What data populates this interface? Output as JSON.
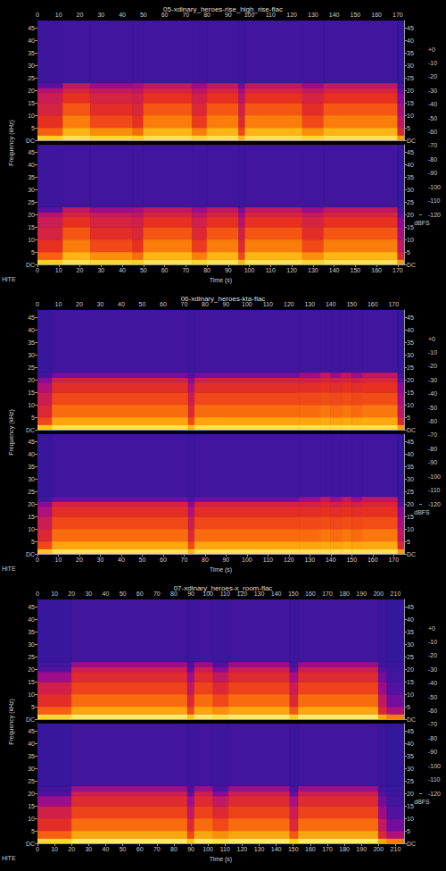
{
  "chart_data": [
    {
      "type": "heatmap",
      "title": "05-xdinary_heroes-rise_high_rise-flac",
      "x_label": "Time (s)",
      "y_label": "Frequency (kHz)",
      "footer": "HiTE",
      "xlim": [
        0,
        173
      ],
      "xticks": [
        0,
        10,
        20,
        30,
        40,
        50,
        60,
        70,
        80,
        90,
        100,
        110,
        120,
        130,
        140,
        150,
        160,
        170
      ],
      "ylim": [
        0,
        48
      ],
      "yticks": [
        {
          "value": 0,
          "label": "DC"
        },
        5,
        10,
        15,
        20,
        25,
        30,
        35,
        40,
        45
      ],
      "time_bins": [
        0,
        12,
        25,
        45,
        50,
        73,
        80,
        95,
        98,
        125,
        135,
        170,
        173
      ],
      "freq_bins": [
        0,
        2,
        5,
        10,
        15,
        19,
        21,
        23,
        48
      ],
      "channels": [
        {
          "cells": [
            [
              -20,
              -40,
              -50,
              -58,
              -62,
              -68,
              -90,
              -96
            ],
            [
              -15,
              -25,
              -35,
              -42,
              -50,
              -58,
              -65,
              -95
            ],
            [
              -18,
              -32,
              -45,
              -52,
              -58,
              -64,
              -75,
              -95
            ],
            [
              -20,
              -38,
              -50,
              -56,
              -60,
              -66,
              -72,
              -95
            ],
            [
              -15,
              -25,
              -35,
              -42,
              -50,
              -58,
              -65,
              -95
            ],
            [
              -18,
              -35,
              -48,
              -55,
              -60,
              -66,
              -75,
              -95
            ],
            [
              -15,
              -25,
              -35,
              -42,
              -50,
              -58,
              -65,
              -95
            ],
            [
              -25,
              -45,
              -55,
              -60,
              -68,
              -75,
              -85,
              -96
            ],
            [
              -15,
              -25,
              -35,
              -42,
              -50,
              -58,
              -65,
              -95
            ],
            [
              -18,
              -32,
              -45,
              -52,
              -58,
              -64,
              -75,
              -95
            ],
            [
              -15,
              -25,
              -35,
              -42,
              -50,
              -58,
              -65,
              -95
            ],
            [
              -30,
              -55,
              -65,
              -72,
              -80,
              -90,
              -95,
              -98
            ]
          ]
        },
        {
          "cells": [
            [
              -20,
              -40,
              -50,
              -58,
              -62,
              -68,
              -90,
              -96
            ],
            [
              -15,
              -25,
              -35,
              -42,
              -50,
              -58,
              -65,
              -95
            ],
            [
              -18,
              -32,
              -45,
              -52,
              -58,
              -64,
              -75,
              -95
            ],
            [
              -20,
              -38,
              -50,
              -56,
              -60,
              -66,
              -72,
              -95
            ],
            [
              -15,
              -25,
              -35,
              -42,
              -50,
              -58,
              -65,
              -95
            ],
            [
              -18,
              -35,
              -48,
              -55,
              -60,
              -66,
              -75,
              -95
            ],
            [
              -15,
              -25,
              -35,
              -42,
              -50,
              -58,
              -65,
              -95
            ],
            [
              -25,
              -45,
              -55,
              -60,
              -68,
              -75,
              -85,
              -96
            ],
            [
              -15,
              -25,
              -35,
              -42,
              -50,
              -58,
              -65,
              -95
            ],
            [
              -18,
              -32,
              -45,
              -52,
              -58,
              -64,
              -75,
              -95
            ],
            [
              -15,
              -25,
              -35,
              -42,
              -50,
              -58,
              -65,
              -95
            ],
            [
              -30,
              -55,
              -65,
              -72,
              -80,
              -90,
              -95,
              -98
            ]
          ]
        }
      ],
      "colorbar": {
        "label": "dBFS",
        "range": [
          -120,
          0
        ],
        "ticks": [
          {
            "value": 0,
            "label": "+0"
          },
          -10,
          -20,
          -30,
          -40,
          -50,
          -60,
          -70,
          -80,
          -90,
          -100,
          -110,
          -120
        ],
        "colors": [
          "#000000",
          "#0a0a3a",
          "#2a1a9a",
          "#5a10a0",
          "#8a0a9a",
          "#b0107a",
          "#d0204a",
          "#e83020",
          "#f86010",
          "#fc9a08",
          "#fdd020",
          "#fff080",
          "#ffffff"
        ]
      }
    },
    {
      "type": "heatmap",
      "title": "06-xdinary_heroes-kta-flac",
      "x_label": "Time (s)",
      "y_label": "Frequency (kHz)",
      "footer": "HiTE",
      "xlim": [
        0,
        175
      ],
      "xticks": [
        0,
        10,
        20,
        30,
        40,
        50,
        60,
        70,
        80,
        90,
        100,
        110,
        120,
        130,
        140,
        150,
        160,
        170
      ],
      "ylim": [
        0,
        48
      ],
      "yticks": [
        {
          "value": 0,
          "label": "DC"
        },
        5,
        10,
        15,
        20,
        25,
        30,
        35,
        40,
        45
      ],
      "time_bins": [
        0,
        7,
        72,
        75,
        125,
        135,
        140,
        145,
        150,
        155,
        172,
        175
      ],
      "freq_bins": [
        0,
        2,
        5,
        10,
        15,
        19,
        21,
        23,
        48
      ],
      "channels": [
        {
          "cells": [
            [
              -22,
              -45,
              -55,
              -62,
              -70,
              -80,
              -95,
              -97
            ],
            [
              -15,
              -28,
              -38,
              -45,
              -52,
              -60,
              -85,
              -95
            ],
            [
              -25,
              -45,
              -55,
              -62,
              -70,
              -80,
              -92,
              -96
            ],
            [
              -15,
              -28,
              -38,
              -45,
              -52,
              -60,
              -85,
              -95
            ],
            [
              -15,
              -28,
              -38,
              -45,
              -52,
              -60,
              -75,
              -95
            ],
            [
              -15,
              -27,
              -36,
              -44,
              -50,
              -57,
              -65,
              -95
            ],
            [
              -15,
              -28,
              -38,
              -45,
              -52,
              -60,
              -75,
              -95
            ],
            [
              -15,
              -27,
              -36,
              -44,
              -50,
              -57,
              -65,
              -95
            ],
            [
              -15,
              -28,
              -38,
              -45,
              -52,
              -60,
              -75,
              -95
            ],
            [
              -15,
              -27,
              -36,
              -44,
              -50,
              -57,
              -65,
              -95
            ],
            [
              -30,
              -55,
              -65,
              -72,
              -80,
              -90,
              -95,
              -98
            ]
          ]
        },
        {
          "cells": [
            [
              -22,
              -45,
              -55,
              -62,
              -70,
              -80,
              -95,
              -97
            ],
            [
              -15,
              -28,
              -38,
              -45,
              -52,
              -60,
              -85,
              -95
            ],
            [
              -25,
              -45,
              -55,
              -62,
              -70,
              -80,
              -92,
              -96
            ],
            [
              -15,
              -28,
              -38,
              -45,
              -52,
              -60,
              -85,
              -95
            ],
            [
              -15,
              -28,
              -38,
              -45,
              -52,
              -60,
              -75,
              -95
            ],
            [
              -15,
              -27,
              -36,
              -44,
              -50,
              -57,
              -65,
              -95
            ],
            [
              -15,
              -28,
              -38,
              -45,
              -52,
              -60,
              -75,
              -95
            ],
            [
              -15,
              -27,
              -36,
              -44,
              -50,
              -57,
              -65,
              -95
            ],
            [
              -15,
              -28,
              -38,
              -45,
              -52,
              -60,
              -75,
              -95
            ],
            [
              -15,
              -27,
              -36,
              -44,
              -50,
              -57,
              -65,
              -95
            ],
            [
              -30,
              -55,
              -65,
              -72,
              -80,
              -90,
              -95,
              -98
            ]
          ]
        }
      ],
      "colorbar": {
        "label": "dBFS",
        "range": [
          -120,
          0
        ],
        "ticks": [
          {
            "value": 0,
            "label": "+0"
          },
          -10,
          -20,
          -30,
          -40,
          -50,
          -60,
          -70,
          -80,
          -90,
          -100,
          -110,
          -120
        ],
        "colors": [
          "#000000",
          "#0a0a3a",
          "#2a1a9a",
          "#5a10a0",
          "#8a0a9a",
          "#b0107a",
          "#d0204a",
          "#e83020",
          "#f86010",
          "#fc9a08",
          "#fdd020",
          "#fff080",
          "#ffffff"
        ]
      }
    },
    {
      "type": "heatmap",
      "title": "07-xdinary_heroes-x_room-flac",
      "x_label": "Time (s)",
      "y_label": "Frequency (kHz)",
      "footer": "HiTE",
      "xlim": [
        0,
        215
      ],
      "xticks": [
        0,
        10,
        20,
        30,
        40,
        50,
        60,
        70,
        80,
        90,
        100,
        110,
        120,
        130,
        140,
        150,
        160,
        170,
        180,
        190,
        200,
        210
      ],
      "ylim": [
        0,
        48
      ],
      "yticks": [
        {
          "value": 0,
          "label": "DC"
        },
        5,
        10,
        15,
        20,
        25,
        30,
        35,
        40,
        45
      ],
      "time_bins": [
        0,
        20,
        88,
        92,
        103,
        112,
        148,
        153,
        200,
        205,
        215
      ],
      "freq_bins": [
        0,
        2,
        5,
        10,
        15,
        19,
        21,
        23,
        48
      ],
      "channels": [
        {
          "cells": [
            [
              -18,
              -40,
              -52,
              -60,
              -75,
              -92,
              -95,
              -97
            ],
            [
              -12,
              -28,
              -38,
              -46,
              -54,
              -62,
              -75,
              -95
            ],
            [
              -22,
              -45,
              -55,
              -65,
              -75,
              -88,
              -94,
              -96
            ],
            [
              -12,
              -28,
              -38,
              -46,
              -54,
              -62,
              -75,
              -95
            ],
            [
              -15,
              -32,
              -45,
              -55,
              -65,
              -80,
              -93,
              -96
            ],
            [
              -12,
              -28,
              -38,
              -46,
              -54,
              -62,
              -75,
              -95
            ],
            [
              -20,
              -42,
              -55,
              -62,
              -72,
              -88,
              -94,
              -96
            ],
            [
              -12,
              -28,
              -38,
              -46,
              -54,
              -62,
              -75,
              -95
            ],
            [
              -28,
              -55,
              -65,
              -75,
              -85,
              -92,
              -95,
              -97
            ],
            [
              -35,
              -70,
              -85,
              -92,
              -95,
              -96,
              -97,
              -98
            ]
          ]
        },
        {
          "cells": [
            [
              -18,
              -40,
              -52,
              -60,
              -75,
              -92,
              -95,
              -97
            ],
            [
              -12,
              -28,
              -38,
              -46,
              -54,
              -62,
              -75,
              -95
            ],
            [
              -22,
              -45,
              -55,
              -65,
              -75,
              -88,
              -94,
              -96
            ],
            [
              -12,
              -28,
              -38,
              -46,
              -54,
              -62,
              -75,
              -95
            ],
            [
              -15,
              -32,
              -45,
              -55,
              -65,
              -80,
              -93,
              -96
            ],
            [
              -12,
              -28,
              -38,
              -46,
              -54,
              -62,
              -75,
              -95
            ],
            [
              -20,
              -42,
              -55,
              -62,
              -72,
              -88,
              -94,
              -96
            ],
            [
              -12,
              -28,
              -38,
              -46,
              -54,
              -62,
              -75,
              -95
            ],
            [
              -28,
              -55,
              -65,
              -75,
              -85,
              -92,
              -95,
              -97
            ],
            [
              -35,
              -70,
              -85,
              -92,
              -95,
              -96,
              -97,
              -98
            ]
          ]
        }
      ],
      "colorbar": {
        "label": "dBFS",
        "range": [
          -120,
          0
        ],
        "ticks": [
          {
            "value": 0,
            "label": "+0"
          },
          -10,
          -20,
          -30,
          -40,
          -50,
          -60,
          -70,
          -80,
          -90,
          -100,
          -110,
          -120
        ],
        "colors": [
          "#000000",
          "#0a0a3a",
          "#2a1a9a",
          "#5a10a0",
          "#8a0a9a",
          "#b0107a",
          "#d0204a",
          "#e83020",
          "#f86010",
          "#fc9a08",
          "#fdd020",
          "#fff080",
          "#ffffff"
        ]
      }
    }
  ]
}
